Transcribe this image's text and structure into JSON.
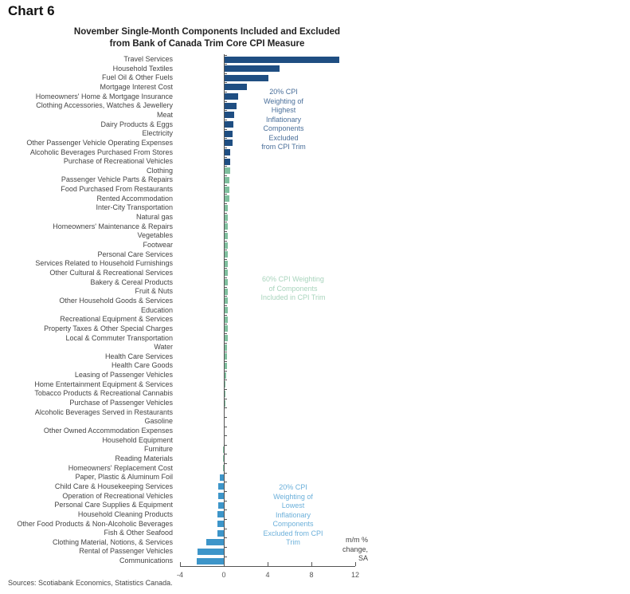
{
  "header": {
    "chart_number": "Chart 6",
    "title_line1": "November Single-Month Components Included and Excluded",
    "title_line2": "from Bank of Canada Trim Core CPI Measure"
  },
  "colors": {
    "highest": "#1f4e82",
    "included": "#7fbf9e",
    "lowest": "#3d95c9",
    "annot_highest": "#4a6f9a",
    "annot_included": "#a9d4bd",
    "annot_lowest": "#6cb0da"
  },
  "annotations": {
    "highest": [
      "20% CPI",
      "Weighting of",
      "Highest",
      "Inflationary",
      "Components",
      "Excluded",
      "from CPI Trim"
    ],
    "included": [
      "60% CPI Weighting",
      "of Components",
      "Included in CPI Trim"
    ],
    "lowest": [
      "20% CPI",
      "Weighting of",
      "Lowest",
      "Inflationary",
      "Components",
      "Excluded from CPI",
      "Trim"
    ]
  },
  "unit_label": [
    "m/m %",
    "change, SA"
  ],
  "source": "Sources: Scotiabank Economics, Statistics Canada.",
  "chart_data": {
    "type": "bar",
    "orientation": "horizontal",
    "title": "November Single-Month Components Included and Excluded from Bank of Canada Trim Core CPI Measure",
    "xlabel": "m/m % change, SA",
    "ylabel": "",
    "xlim": [
      -4,
      12
    ],
    "xticks": [
      -4,
      0,
      4,
      8,
      12
    ],
    "grid": false,
    "legend": "none (groups annotated in-plot)",
    "categories": [
      "Travel Services",
      "Household Textiles",
      "Fuel Oil & Other Fuels",
      "Mortgage Interest Cost",
      "Homeowners' Home & Mortgage Insurance",
      "Clothing Accessories, Watches & Jewellery",
      "Meat",
      "Dairy Products & Eggs",
      "Electricity",
      "Other Passenger Vehicle Operating Expenses",
      "Alcoholic Beverages Purchased From Stores",
      "Purchase of Recreational Vehicles",
      "Clothing",
      "Passenger Vehicle Parts & Repairs",
      "Food Purchased From Restaurants",
      "Rented Accommodation",
      "Inter-City Transportation",
      "Natural gas",
      "Homeowners' Maintenance & Repairs",
      "Vegetables",
      "Footwear",
      "Personal Care Services",
      "Services Related to Household Furnishings",
      "Other Cultural & Recreational Services",
      "Bakery & Cereal Products",
      "Fruit & Nuts",
      "Other Household Goods & Services",
      "Education",
      "Recreational Equipment & Services",
      "Property Taxes & Other Special Charges",
      "Local & Commuter Transportation",
      "Water",
      "Health Care Services",
      "Health Care Goods",
      "Leasing of Passenger Vehicles",
      "Home Entertainment Equipment & Services",
      "Tobacco Products & Recreational Cannabis",
      "Purchase of Passenger Vehicles",
      "Alcoholic Beverages Served in Restaurants",
      "Gasoline",
      "Other Owned Accommodation Expenses",
      "Household Equipment",
      "Furniture",
      "Reading Materials",
      "Homeowners' Replacement Cost",
      "Paper, Plastic & Aluminum Foil",
      "Child Care & Housekeeping Services",
      "Operation of Recreational Vehicles",
      "Personal Care Supplies & Equipment",
      "Household Cleaning Products",
      "Other Food Products & Non-Alcoholic Beverages",
      "Fish & Other Seafood",
      "Clothing Material, Notions, & Services",
      "Rental of Passenger Vehicles",
      "Communications"
    ],
    "values": [
      10.5,
      5.0,
      4.0,
      2.0,
      1.2,
      1.1,
      0.9,
      0.8,
      0.7,
      0.7,
      0.5,
      0.5,
      0.5,
      0.4,
      0.4,
      0.4,
      0.3,
      0.3,
      0.3,
      0.3,
      0.3,
      0.3,
      0.3,
      0.3,
      0.3,
      0.3,
      0.3,
      0.3,
      0.3,
      0.3,
      0.3,
      0.25,
      0.2,
      0.2,
      0.15,
      0.1,
      0.1,
      0.1,
      0.0,
      0.0,
      0.0,
      0.0,
      -0.05,
      -0.1,
      -0.1,
      -0.4,
      -0.5,
      -0.5,
      -0.5,
      -0.6,
      -0.6,
      -0.6,
      -1.6,
      -2.4,
      -2.5
    ],
    "groups": [
      {
        "name": "Highest 20% excluded",
        "range": [
          0,
          11
        ],
        "color": "#1f4e82"
      },
      {
        "name": "60% included",
        "range": [
          12,
          44
        ],
        "color": "#7fbf9e"
      },
      {
        "name": "Lowest 20% excluded",
        "range": [
          45,
          54
        ],
        "color": "#3d95c9"
      }
    ]
  }
}
